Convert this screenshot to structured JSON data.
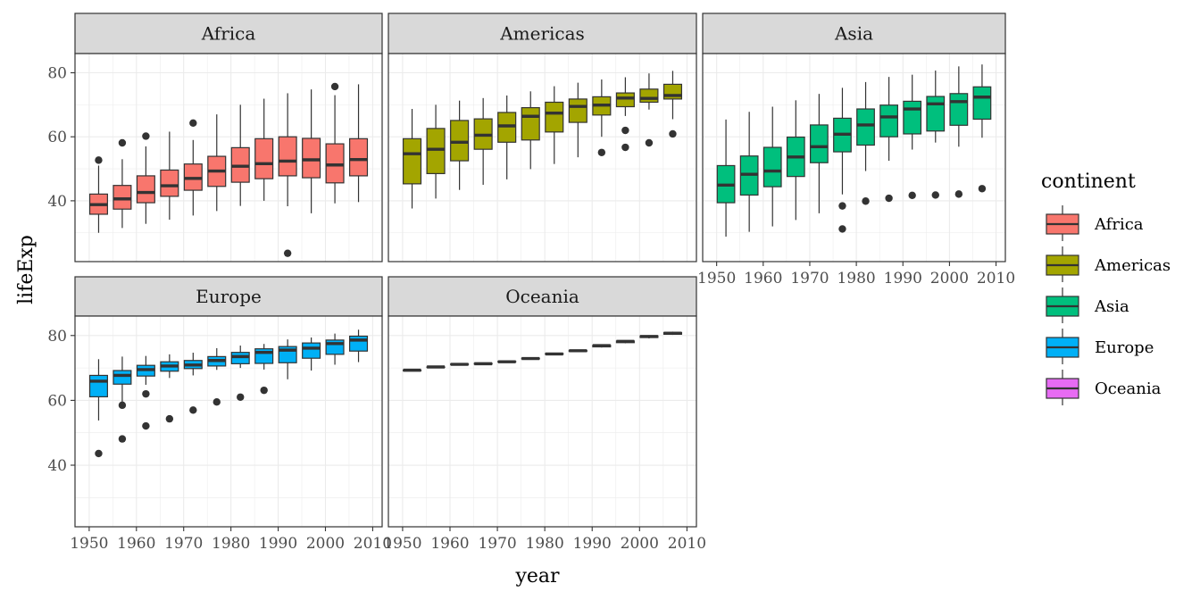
{
  "chart_data": {
    "type": "boxplot",
    "facet_by": "continent",
    "xlabel": "year",
    "ylabel": "lifeExp",
    "xlim": [
      1947,
      2012
    ],
    "ylim": [
      21,
      86
    ],
    "x_ticks": [
      1950,
      1960,
      1970,
      1980,
      1990,
      2000,
      2010
    ],
    "y_ticks": [
      40,
      60,
      80
    ],
    "grid": true,
    "legend": {
      "title": "continent",
      "position": "right",
      "items": [
        {
          "label": "Africa",
          "color": "#F8766D"
        },
        {
          "label": "Americas",
          "color": "#A3A500"
        },
        {
          "label": "Asia",
          "color": "#00BF7D"
        },
        {
          "label": "Europe",
          "color": "#00B0F6"
        },
        {
          "label": "Oceania",
          "color": "#E76BF3"
        }
      ]
    },
    "facets": [
      {
        "name": "Africa",
        "color": "#F8766D",
        "boxes": [
          {
            "year": 1952,
            "min": 30,
            "q1": 35.8,
            "median": 38.8,
            "q3": 42.1,
            "max": 51,
            "outliers": [
              52.7
            ]
          },
          {
            "year": 1957,
            "min": 31.5,
            "q1": 37.4,
            "median": 40.6,
            "q3": 44.8,
            "max": 53,
            "outliers": [
              58.1
            ]
          },
          {
            "year": 1962,
            "min": 32.8,
            "q1": 39.4,
            "median": 42.6,
            "q3": 47.8,
            "max": 57,
            "outliers": [
              60.2
            ]
          },
          {
            "year": 1967,
            "min": 34.1,
            "q1": 41.4,
            "median": 44.7,
            "q3": 49.6,
            "max": 61.6,
            "outliers": []
          },
          {
            "year": 1972,
            "min": 35.4,
            "q1": 43.3,
            "median": 47,
            "q3": 51.5,
            "max": 59,
            "outliers": [
              64.3
            ]
          },
          {
            "year": 1977,
            "min": 36.8,
            "q1": 44.5,
            "median": 49.3,
            "q3": 53.9,
            "max": 67,
            "outliers": []
          },
          {
            "year": 1982,
            "min": 38.4,
            "q1": 45.8,
            "median": 50.8,
            "q3": 56.6,
            "max": 70,
            "outliers": []
          },
          {
            "year": 1987,
            "min": 40,
            "q1": 46.9,
            "median": 51.6,
            "q3": 59.4,
            "max": 71.9,
            "outliers": []
          },
          {
            "year": 1992,
            "min": 38.3,
            "q1": 47.8,
            "median": 52.4,
            "q3": 60,
            "max": 73.6,
            "outliers": [
              23.6
            ]
          },
          {
            "year": 1997,
            "min": 36.1,
            "q1": 47.2,
            "median": 52.8,
            "q3": 59.5,
            "max": 74.8,
            "outliers": []
          },
          {
            "year": 2002,
            "min": 39.2,
            "q1": 45.6,
            "median": 51.2,
            "q3": 57.8,
            "max": 73,
            "outliers": [
              75.7
            ]
          },
          {
            "year": 2007,
            "min": 39.6,
            "q1": 47.8,
            "median": 52.9,
            "q3": 59.4,
            "max": 76.4,
            "outliers": []
          }
        ]
      },
      {
        "name": "Americas",
        "color": "#A3A500",
        "boxes": [
          {
            "year": 1952,
            "min": 37.6,
            "q1": 45.3,
            "median": 54.7,
            "q3": 59.4,
            "max": 68.7,
            "outliers": []
          },
          {
            "year": 1957,
            "min": 40.7,
            "q1": 48.5,
            "median": 56.1,
            "q3": 62.6,
            "max": 70,
            "outliers": []
          },
          {
            "year": 1962,
            "min": 43.4,
            "q1": 52.5,
            "median": 58.3,
            "q3": 65.1,
            "max": 71.3,
            "outliers": []
          },
          {
            "year": 1967,
            "min": 45,
            "q1": 56.1,
            "median": 60.5,
            "q3": 65.6,
            "max": 72.1,
            "outliers": []
          },
          {
            "year": 1972,
            "min": 46.7,
            "q1": 58.3,
            "median": 63.4,
            "q3": 67.6,
            "max": 72.9,
            "outliers": []
          },
          {
            "year": 1977,
            "min": 49.9,
            "q1": 59.0,
            "median": 66.4,
            "q3": 69.1,
            "max": 74.2,
            "outliers": []
          },
          {
            "year": 1982,
            "min": 51.5,
            "q1": 61.5,
            "median": 67.4,
            "q3": 70.8,
            "max": 75.8,
            "outliers": []
          },
          {
            "year": 1987,
            "min": 53.6,
            "q1": 64.5,
            "median": 69.5,
            "q3": 71.8,
            "max": 76.9,
            "outliers": []
          },
          {
            "year": 1992,
            "min": 60,
            "q1": 66.8,
            "median": 69.9,
            "q3": 72.5,
            "max": 77.9,
            "outliers": [
              55.1
            ]
          },
          {
            "year": 1997,
            "min": 66.5,
            "q1": 69.4,
            "median": 72.1,
            "q3": 73.7,
            "max": 78.6,
            "outliers": [
              62,
              56.7
            ]
          },
          {
            "year": 2002,
            "min": 68.5,
            "q1": 70.8,
            "median": 72.0,
            "q3": 74.9,
            "max": 79.8,
            "outliers": [
              58.1
            ]
          },
          {
            "year": 2007,
            "min": 65.5,
            "q1": 71.8,
            "median": 72.9,
            "q3": 76.4,
            "max": 80.6,
            "outliers": [
              60.9
            ]
          }
        ]
      },
      {
        "name": "Asia",
        "color": "#00BF7D",
        "boxes": [
          {
            "year": 1952,
            "min": 28.8,
            "q1": 39.4,
            "median": 44.9,
            "q3": 51,
            "max": 65.4,
            "outliers": []
          },
          {
            "year": 1957,
            "min": 30.3,
            "q1": 41.8,
            "median": 48.3,
            "q3": 54,
            "max": 67.8,
            "outliers": []
          },
          {
            "year": 1962,
            "min": 32,
            "q1": 44.4,
            "median": 49.3,
            "q3": 56.7,
            "max": 69.4,
            "outliers": []
          },
          {
            "year": 1967,
            "min": 34,
            "q1": 47.6,
            "median": 53.7,
            "q3": 59.9,
            "max": 71.4,
            "outliers": []
          },
          {
            "year": 1972,
            "min": 36.1,
            "q1": 51.9,
            "median": 56.9,
            "q3": 63.7,
            "max": 73.4,
            "outliers": []
          },
          {
            "year": 1977,
            "min": 42,
            "q1": 55.3,
            "median": 60.8,
            "q3": 65.8,
            "max": 75.3,
            "outliers": [
              38.4,
              31.2
            ]
          },
          {
            "year": 1982,
            "min": 49.3,
            "q1": 57.4,
            "median": 63.7,
            "q3": 68.7,
            "max": 77.1,
            "outliers": [
              39.9
            ]
          },
          {
            "year": 1987,
            "min": 52.5,
            "q1": 60,
            "median": 66.2,
            "q3": 69.9,
            "max": 78.7,
            "outliers": [
              40.8
            ]
          },
          {
            "year": 1992,
            "min": 56,
            "q1": 60.9,
            "median": 68.7,
            "q3": 71.1,
            "max": 79.4,
            "outliers": [
              41.7
            ]
          },
          {
            "year": 1997,
            "min": 58.2,
            "q1": 61.8,
            "median": 70.3,
            "q3": 72.6,
            "max": 80.7,
            "outliers": [
              41.8
            ]
          },
          {
            "year": 2002,
            "min": 56.9,
            "q1": 63.6,
            "median": 71,
            "q3": 73.5,
            "max": 82,
            "outliers": [
              42.1
            ]
          },
          {
            "year": 2007,
            "min": 59.7,
            "q1": 65.5,
            "median": 72.4,
            "q3": 75.6,
            "max": 82.6,
            "outliers": [
              43.8
            ]
          }
        ]
      },
      {
        "name": "Europe",
        "color": "#00B0F6",
        "boxes": [
          {
            "year": 1952,
            "min": 53.8,
            "q1": 61.1,
            "median": 65.9,
            "q3": 67.7,
            "max": 72.7,
            "outliers": [
              43.6
            ]
          },
          {
            "year": 1957,
            "min": 59.3,
            "q1": 65,
            "median": 67.7,
            "q3": 69.2,
            "max": 73.5,
            "outliers": [
              58.5,
              48.1
            ]
          },
          {
            "year": 1962,
            "min": 64.8,
            "q1": 67.5,
            "median": 69.5,
            "q3": 70.8,
            "max": 73.7,
            "outliers": [
              62,
              52.1
            ]
          },
          {
            "year": 1967,
            "min": 66.9,
            "q1": 69,
            "median": 70.6,
            "q3": 71.9,
            "max": 74.2,
            "outliers": [
              54.3
            ]
          },
          {
            "year": 1972,
            "min": 67.7,
            "q1": 69.8,
            "median": 70.9,
            "q3": 72.3,
            "max": 74.7,
            "outliers": [
              57
            ]
          },
          {
            "year": 1977,
            "min": 69.4,
            "q1": 70.6,
            "median": 72.3,
            "q3": 73.5,
            "max": 76.1,
            "outliers": [
              59.5
            ]
          },
          {
            "year": 1982,
            "min": 70,
            "q1": 71.3,
            "median": 73.5,
            "q3": 74.8,
            "max": 76.9,
            "outliers": [
              61
            ]
          },
          {
            "year": 1987,
            "min": 69.5,
            "q1": 71.4,
            "median": 74.8,
            "q3": 75.9,
            "max": 77.4,
            "outliers": [
              63.1
            ]
          },
          {
            "year": 1992,
            "min": 66.5,
            "q1": 71.6,
            "median": 75.5,
            "q3": 76.6,
            "max": 78.8,
            "outliers": []
          },
          {
            "year": 1997,
            "min": 69.2,
            "q1": 73,
            "median": 76.1,
            "q3": 77.7,
            "max": 79.4,
            "outliers": []
          },
          {
            "year": 2002,
            "min": 71,
            "q1": 74.2,
            "median": 77.5,
            "q3": 78.6,
            "max": 80.6,
            "outliers": []
          },
          {
            "year": 2007,
            "min": 71.8,
            "q1": 75.2,
            "median": 78.6,
            "q3": 79.8,
            "max": 81.8,
            "outliers": []
          }
        ]
      },
      {
        "name": "Oceania",
        "color": "#E76BF3",
        "boxes": [
          {
            "year": 1952,
            "min": 69.1,
            "q1": 69.2,
            "median": 69.3,
            "q3": 69.3,
            "max": 69.4,
            "outliers": []
          },
          {
            "year": 1957,
            "min": 70.3,
            "q1": 70.3,
            "median": 70.3,
            "q3": 70.3,
            "max": 70.3,
            "outliers": []
          },
          {
            "year": 1962,
            "min": 71,
            "q1": 71.1,
            "median": 71.1,
            "q3": 71.2,
            "max": 71.2,
            "outliers": []
          },
          {
            "year": 1967,
            "min": 71.1,
            "q1": 71.2,
            "median": 71.3,
            "q3": 71.4,
            "max": 71.5,
            "outliers": []
          },
          {
            "year": 1972,
            "min": 71.9,
            "q1": 71.9,
            "median": 71.9,
            "q3": 72,
            "max": 72,
            "outliers": []
          },
          {
            "year": 1977,
            "min": 72.8,
            "q1": 72.8,
            "median": 72.9,
            "q3": 73,
            "max": 73.1,
            "outliers": []
          },
          {
            "year": 1982,
            "min": 74.3,
            "q1": 74.3,
            "median": 74.3,
            "q3": 74.4,
            "max": 74.4,
            "outliers": []
          },
          {
            "year": 1987,
            "min": 74.9,
            "q1": 75.1,
            "median": 75.3,
            "q3": 75.4,
            "max": 75.5,
            "outliers": []
          },
          {
            "year": 1992,
            "min": 76.3,
            "q1": 76.5,
            "median": 76.9,
            "q3": 77,
            "max": 77.1,
            "outliers": []
          },
          {
            "year": 1997,
            "min": 77.6,
            "q1": 77.8,
            "median": 78.2,
            "q3": 78.3,
            "max": 78.4,
            "outliers": []
          },
          {
            "year": 2002,
            "min": 79.1,
            "q1": 79.4,
            "median": 79.7,
            "q3": 79.9,
            "max": 80.1,
            "outliers": []
          },
          {
            "year": 2007,
            "min": 80.2,
            "q1": 80.4,
            "median": 80.7,
            "q3": 80.9,
            "max": 81.2,
            "outliers": []
          }
        ]
      }
    ]
  }
}
